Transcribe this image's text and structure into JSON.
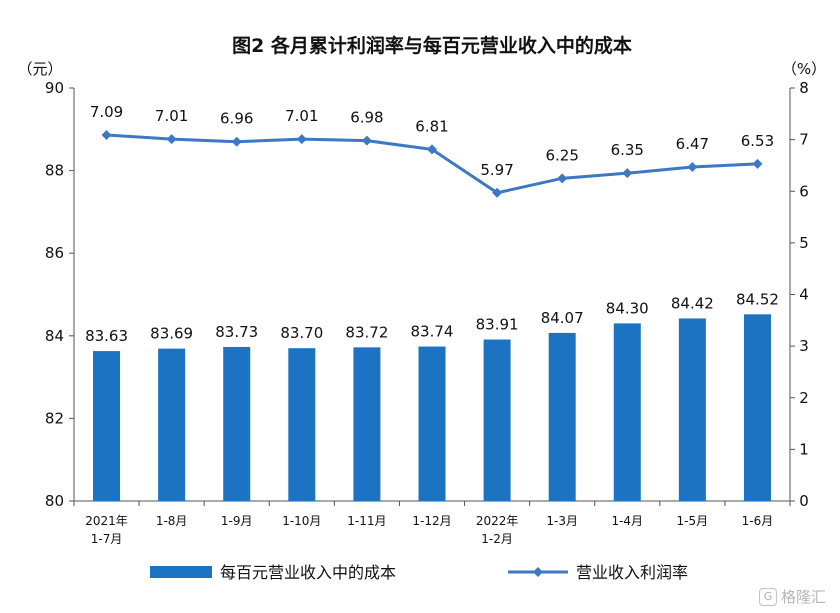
{
  "chart_data": {
    "type": "bar+line",
    "title": "图2  各月累计利润率与每百元营业收入中的成本",
    "y_left_unit": "（元）",
    "y_right_unit": "（%）",
    "y_left_range": [
      80,
      90
    ],
    "y_left_ticks": [
      "80",
      "82",
      "84",
      "86",
      "88",
      "90"
    ],
    "y_right_range": [
      0,
      8
    ],
    "y_right_ticks": [
      "0",
      "1",
      "2",
      "3",
      "4",
      "5",
      "6",
      "7",
      "8"
    ],
    "categories": [
      {
        "line1": "2021年",
        "line2": "1-7月"
      },
      {
        "line1": "1-8月",
        "line2": ""
      },
      {
        "line1": "1-9月",
        "line2": ""
      },
      {
        "line1": "1-10月",
        "line2": ""
      },
      {
        "line1": "1-11月",
        "line2": ""
      },
      {
        "line1": "1-12月",
        "line2": ""
      },
      {
        "line1": "2022年",
        "line2": "1-2月"
      },
      {
        "line1": "1-3月",
        "line2": ""
      },
      {
        "line1": "1-4月",
        "line2": ""
      },
      {
        "line1": "1-5月",
        "line2": ""
      },
      {
        "line1": "1-6月",
        "line2": ""
      }
    ],
    "series": [
      {
        "name": "每百元营业收入中的成本",
        "type": "bar",
        "axis": "left",
        "values": [
          83.63,
          83.69,
          83.73,
          83.7,
          83.72,
          83.74,
          83.91,
          84.07,
          84.3,
          84.42,
          84.52
        ],
        "labels": [
          "83.63",
          "83.69",
          "83.73",
          "83.70",
          "83.72",
          "83.74",
          "83.91",
          "84.07",
          "84.30",
          "84.42",
          "84.52"
        ],
        "color": "#1b73c2"
      },
      {
        "name": "营业收入利润率",
        "type": "line",
        "axis": "right",
        "values": [
          7.09,
          7.01,
          6.96,
          7.01,
          6.98,
          6.81,
          5.97,
          6.25,
          6.35,
          6.47,
          6.53
        ],
        "labels": [
          "7.09",
          "7.01",
          "6.96",
          "7.01",
          "6.98",
          "6.81",
          "5.97",
          "6.25",
          "6.35",
          "6.47",
          "6.53"
        ],
        "color": "#3c78c4"
      }
    ],
    "legend_position": "bottom",
    "grid": false
  },
  "watermark": {
    "text": "格隆汇",
    "badge": "G"
  }
}
